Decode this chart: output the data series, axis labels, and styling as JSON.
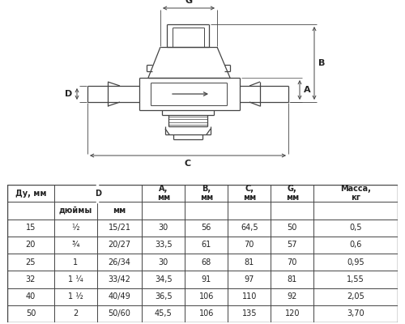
{
  "line_color": "#444444",
  "text_color": "#222222",
  "table_data": [
    [
      "15",
      "½",
      "15/21",
      "30",
      "56",
      "64,5",
      "50",
      "0,5"
    ],
    [
      "20",
      "¾",
      "20/27",
      "33,5",
      "61",
      "70",
      "57",
      "0,6"
    ],
    [
      "25",
      "1",
      "26/34",
      "30",
      "68",
      "81",
      "70",
      "0,95"
    ],
    [
      "32",
      "1 ¼",
      "33/42",
      "34,5",
      "91",
      "97",
      "81",
      "1,55"
    ],
    [
      "40",
      "1 ½",
      "40/49",
      "36,5",
      "106",
      "110",
      "92",
      "2,05"
    ],
    [
      "50",
      "2",
      "50/60",
      "45,5",
      "106",
      "135",
      "120",
      "3,70"
    ]
  ]
}
